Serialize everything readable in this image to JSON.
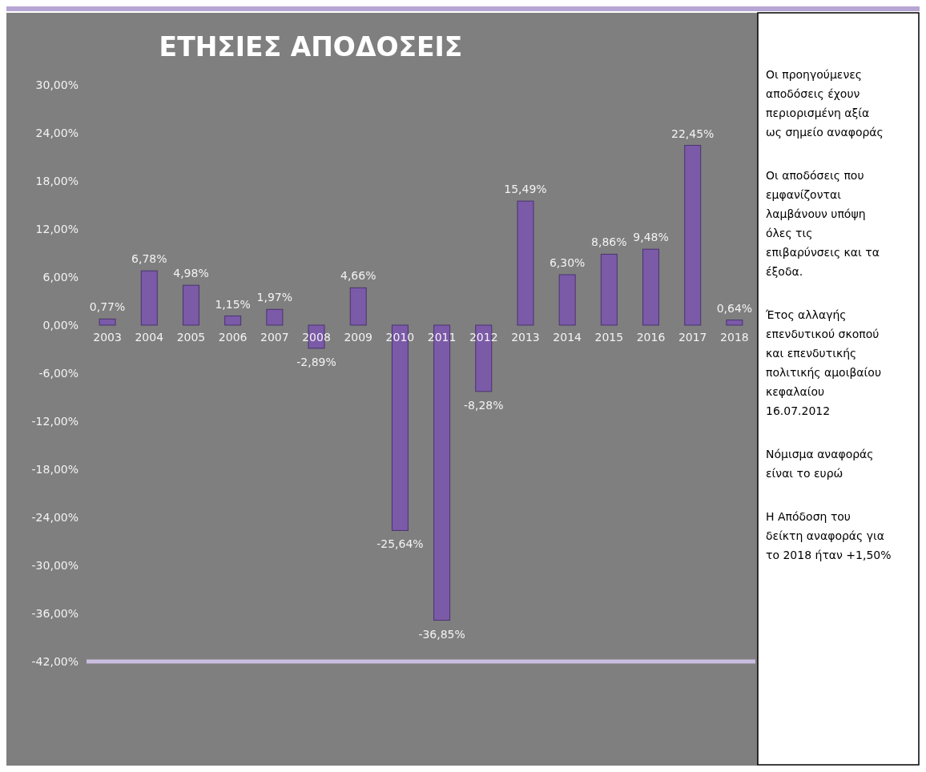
{
  "chart_data": {
    "type": "bar",
    "title": "ΕΤΗΣΙΕΣ ΑΠΟΔΟΣΕΙΣ",
    "categories": [
      "2003",
      "2004",
      "2005",
      "2006",
      "2007",
      "2008",
      "2009",
      "2010",
      "2011",
      "2012",
      "2013",
      "2014",
      "2015",
      "2016",
      "2017",
      "2018"
    ],
    "values": [
      0.77,
      6.78,
      4.98,
      1.15,
      1.97,
      -2.89,
      4.66,
      -25.64,
      -36.85,
      -8.28,
      15.49,
      6.3,
      8.86,
      9.48,
      22.45,
      0.64
    ],
    "value_labels": [
      "0,77%",
      "6,78%",
      "4,98%",
      "1,15%",
      "1,97%",
      "-2,89%",
      "4,66%",
      "-25,64%",
      "-36,85%",
      "-8,28%",
      "15,49%",
      "6,30%",
      "8,86%",
      "9,48%",
      "22,45%",
      "0,64%"
    ],
    "color": "#7b5aa8",
    "ylim": [
      -42,
      30
    ],
    "yticks": [
      {
        "value": 30,
        "label": "30,00%"
      },
      {
        "value": 24,
        "label": "24,00%"
      },
      {
        "value": 18,
        "label": "18,00%"
      },
      {
        "value": 12,
        "label": "12,00%"
      },
      {
        "value": 6,
        "label": "6,00%"
      },
      {
        "value": 0,
        "label": "0,00%"
      },
      {
        "value": -6,
        "label": "-6,00%"
      },
      {
        "value": -12,
        "label": "-12,00%"
      },
      {
        "value": -18,
        "label": "-18,00%"
      },
      {
        "value": -24,
        "label": "-24,00%"
      },
      {
        "value": -30,
        "label": "-30,00%"
      },
      {
        "value": -36,
        "label": "-36,00%"
      },
      {
        "value": -42,
        "label": "-42,00%"
      }
    ],
    "annotations": [
      "Οι προηγούμενες αποδόσεις έχουν περιορισμένη αξία ως σημείο αναφοράς",
      "Οι αποδόσεις που εμφανίζονται λαμβάνουν υπόψη όλες τις επιβαρύνσεις και τα έξοδα.",
      "Έτος αλλαγής επενδυτικού σκοπού και επενδυτικής πολιτικής αμοιβαίου κεφαλαίου 16.07.2012",
      "Νόμισμα αναφοράς είναι το ευρώ",
      "Η Απόδοση του δείκτη αναφοράς για το 2018 ήταν +1,50%"
    ]
  }
}
